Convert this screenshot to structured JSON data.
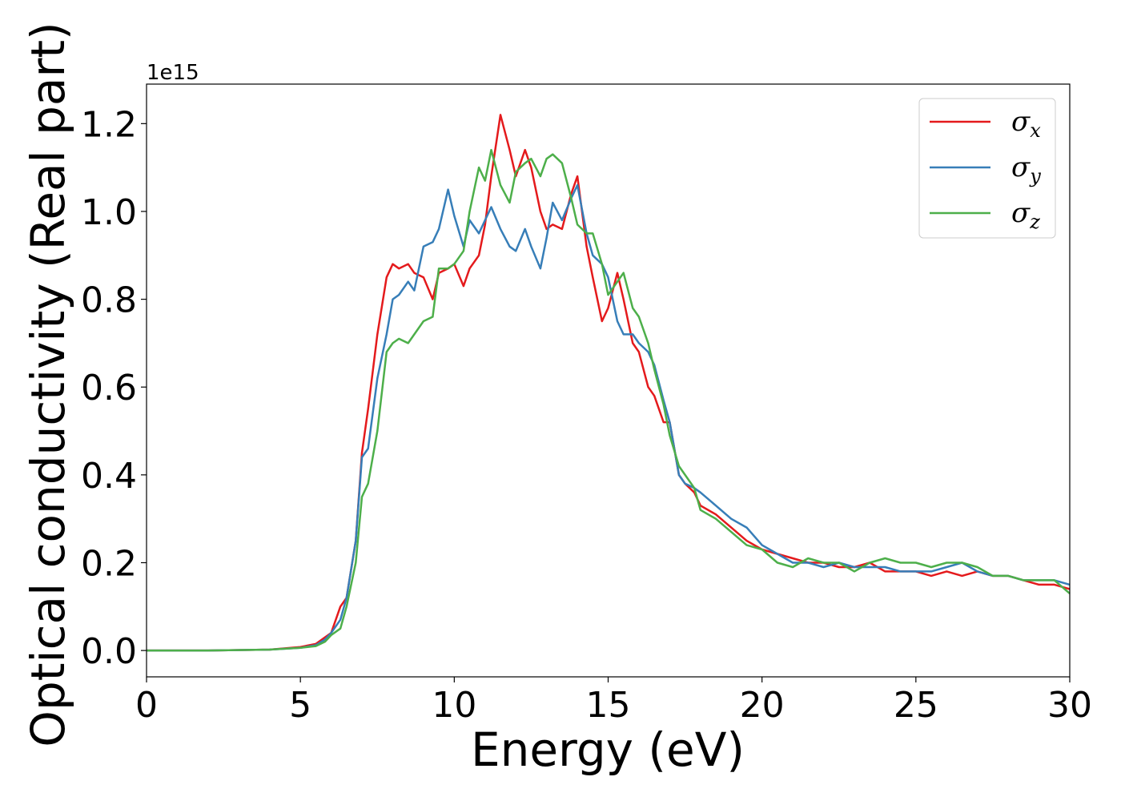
{
  "chart_data": {
    "type": "line",
    "xlabel": "Energy (eV)",
    "ylabel": "Optical conductivity (Real part)",
    "y_offset_label": "1e15",
    "xlim": [
      0,
      30
    ],
    "ylim": [
      -0.06,
      1.29
    ],
    "xticks": [
      0,
      5,
      10,
      15,
      20,
      25,
      30
    ],
    "xtick_labels": [
      "0",
      "5",
      "10",
      "15",
      "20",
      "25",
      "30"
    ],
    "yticks": [
      0.0,
      0.2,
      0.4,
      0.6,
      0.8,
      1.0,
      1.2
    ],
    "ytick_labels": [
      "0.0",
      "0.2",
      "0.4",
      "0.6",
      "0.8",
      "1.0",
      "1.2"
    ],
    "grid": false,
    "legend_position": "top-right",
    "series": [
      {
        "name": "σx",
        "legend_base": "σ",
        "legend_sub": "x",
        "color": "#e41a1c",
        "x": [
          0,
          2,
          4,
          5,
          5.5,
          5.8,
          6.0,
          6.3,
          6.5,
          6.8,
          7.0,
          7.2,
          7.5,
          7.8,
          8.0,
          8.2,
          8.5,
          8.7,
          9.0,
          9.3,
          9.5,
          9.8,
          10.0,
          10.3,
          10.5,
          10.8,
          11.0,
          11.2,
          11.5,
          11.8,
          12.0,
          12.3,
          12.5,
          12.8,
          13.0,
          13.2,
          13.5,
          13.8,
          14.0,
          14.3,
          14.5,
          14.8,
          15.0,
          15.3,
          15.5,
          15.8,
          16.0,
          16.3,
          16.5,
          16.8,
          17.0,
          17.3,
          17.5,
          17.8,
          18.0,
          18.5,
          19.0,
          19.5,
          20.0,
          20.5,
          21.0,
          21.5,
          22.0,
          22.5,
          23.0,
          23.5,
          24.0,
          24.5,
          25.0,
          25.5,
          26.0,
          26.5,
          27.0,
          27.5,
          28.0,
          28.5,
          29.0,
          29.5,
          30.0
        ],
        "y": [
          0.0,
          0.0,
          0.002,
          0.008,
          0.015,
          0.03,
          0.04,
          0.1,
          0.12,
          0.25,
          0.45,
          0.55,
          0.72,
          0.85,
          0.88,
          0.87,
          0.88,
          0.86,
          0.85,
          0.8,
          0.86,
          0.87,
          0.88,
          0.83,
          0.87,
          0.9,
          0.97,
          1.08,
          1.22,
          1.14,
          1.08,
          1.14,
          1.1,
          1.0,
          0.96,
          0.97,
          0.96,
          1.04,
          1.08,
          0.92,
          0.85,
          0.75,
          0.78,
          0.86,
          0.8,
          0.7,
          0.68,
          0.6,
          0.58,
          0.52,
          0.52,
          0.4,
          0.38,
          0.36,
          0.33,
          0.31,
          0.28,
          0.25,
          0.23,
          0.22,
          0.21,
          0.2,
          0.2,
          0.19,
          0.19,
          0.2,
          0.18,
          0.18,
          0.18,
          0.17,
          0.18,
          0.17,
          0.18,
          0.17,
          0.17,
          0.16,
          0.15,
          0.15,
          0.14
        ]
      },
      {
        "name": "σy",
        "legend_base": "σ",
        "legend_sub": "y",
        "color": "#377eb8",
        "x": [
          0,
          2,
          4,
          5,
          5.5,
          5.8,
          6.0,
          6.3,
          6.5,
          6.8,
          7.0,
          7.2,
          7.5,
          7.8,
          8.0,
          8.2,
          8.5,
          8.7,
          9.0,
          9.3,
          9.5,
          9.8,
          10.0,
          10.3,
          10.5,
          10.8,
          11.0,
          11.2,
          11.5,
          11.8,
          12.0,
          12.3,
          12.5,
          12.8,
          13.0,
          13.2,
          13.5,
          13.8,
          14.0,
          14.3,
          14.5,
          14.8,
          15.0,
          15.3,
          15.5,
          15.8,
          16.0,
          16.3,
          16.5,
          16.8,
          17.0,
          17.3,
          17.5,
          17.8,
          18.0,
          18.5,
          19.0,
          19.5,
          20.0,
          20.5,
          21.0,
          21.5,
          22.0,
          22.5,
          23.0,
          23.5,
          24.0,
          24.5,
          25.0,
          25.5,
          26.0,
          26.5,
          27.0,
          27.5,
          28.0,
          28.5,
          29.0,
          29.5,
          30.0
        ],
        "y": [
          0.0,
          0.0,
          0.002,
          0.006,
          0.012,
          0.025,
          0.04,
          0.07,
          0.12,
          0.25,
          0.44,
          0.46,
          0.62,
          0.72,
          0.8,
          0.81,
          0.84,
          0.82,
          0.92,
          0.93,
          0.96,
          1.05,
          0.99,
          0.92,
          0.98,
          0.95,
          0.98,
          1.01,
          0.96,
          0.92,
          0.91,
          0.96,
          0.92,
          0.87,
          0.94,
          1.02,
          0.98,
          1.03,
          1.06,
          0.95,
          0.9,
          0.88,
          0.85,
          0.75,
          0.72,
          0.72,
          0.7,
          0.68,
          0.65,
          0.57,
          0.52,
          0.4,
          0.38,
          0.37,
          0.36,
          0.33,
          0.3,
          0.28,
          0.24,
          0.22,
          0.2,
          0.2,
          0.19,
          0.2,
          0.19,
          0.19,
          0.19,
          0.18,
          0.18,
          0.18,
          0.19,
          0.2,
          0.18,
          0.17,
          0.17,
          0.16,
          0.16,
          0.16,
          0.15
        ]
      },
      {
        "name": "σz",
        "legend_base": "σ",
        "legend_sub": "z",
        "color": "#4daf4a",
        "x": [
          0,
          2,
          4,
          5,
          5.5,
          5.8,
          6.0,
          6.3,
          6.5,
          6.8,
          7.0,
          7.2,
          7.5,
          7.8,
          8.0,
          8.2,
          8.5,
          8.7,
          9.0,
          9.3,
          9.5,
          9.8,
          10.0,
          10.3,
          10.5,
          10.8,
          11.0,
          11.2,
          11.5,
          11.8,
          12.0,
          12.3,
          12.5,
          12.8,
          13.0,
          13.2,
          13.5,
          13.8,
          14.0,
          14.3,
          14.5,
          14.8,
          15.0,
          15.3,
          15.5,
          15.8,
          16.0,
          16.3,
          16.5,
          16.8,
          17.0,
          17.3,
          17.5,
          17.8,
          18.0,
          18.5,
          19.0,
          19.5,
          20.0,
          20.5,
          21.0,
          21.5,
          22.0,
          22.5,
          23.0,
          23.5,
          24.0,
          24.5,
          25.0,
          25.5,
          26.0,
          26.5,
          27.0,
          27.5,
          28.0,
          28.5,
          29.0,
          29.5,
          30.0
        ],
        "y": [
          0.0,
          0.0,
          0.002,
          0.006,
          0.01,
          0.02,
          0.035,
          0.05,
          0.1,
          0.2,
          0.35,
          0.38,
          0.5,
          0.68,
          0.7,
          0.71,
          0.7,
          0.72,
          0.75,
          0.76,
          0.87,
          0.87,
          0.88,
          0.91,
          1.0,
          1.1,
          1.07,
          1.14,
          1.06,
          1.02,
          1.09,
          1.11,
          1.12,
          1.08,
          1.12,
          1.13,
          1.11,
          1.03,
          0.97,
          0.95,
          0.95,
          0.88,
          0.81,
          0.84,
          0.86,
          0.78,
          0.76,
          0.7,
          0.64,
          0.56,
          0.49,
          0.42,
          0.4,
          0.37,
          0.32,
          0.3,
          0.27,
          0.24,
          0.23,
          0.2,
          0.19,
          0.21,
          0.2,
          0.2,
          0.18,
          0.2,
          0.21,
          0.2,
          0.2,
          0.19,
          0.2,
          0.2,
          0.19,
          0.17,
          0.17,
          0.16,
          0.16,
          0.16,
          0.13
        ]
      }
    ]
  }
}
